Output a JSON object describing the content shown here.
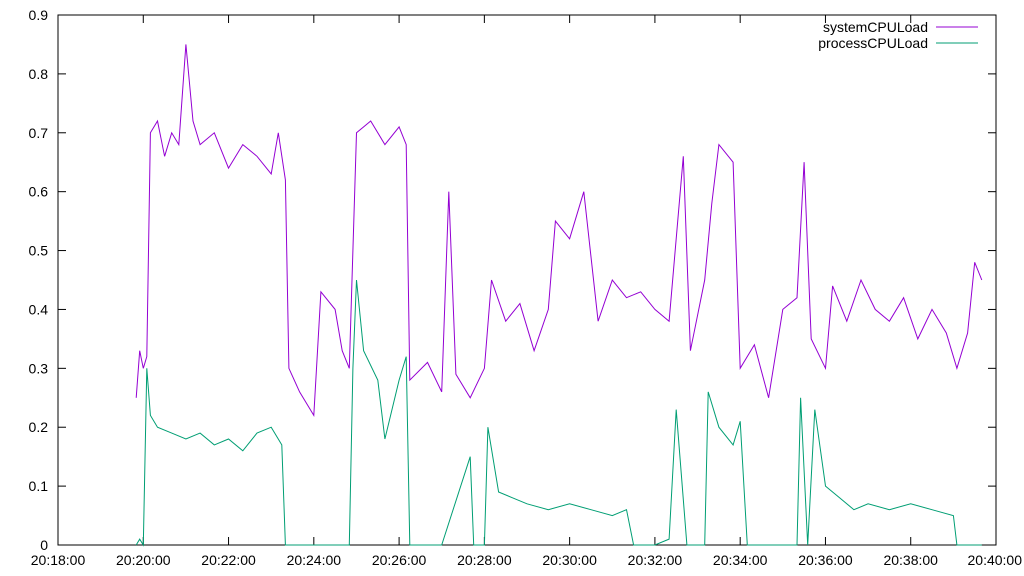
{
  "chart_data": {
    "type": "line",
    "title": "",
    "xlabel": "",
    "ylabel": "",
    "x_ticks": [
      "20:18:00",
      "20:20:00",
      "20:22:00",
      "20:24:00",
      "20:26:00",
      "20:28:00",
      "20:30:00",
      "20:32:00",
      "20:34:00",
      "20:36:00",
      "20:38:00",
      "20:40:00"
    ],
    "y_ticks": [
      "0",
      "0.1",
      "0.2",
      "0.3",
      "0.4",
      "0.5",
      "0.6",
      "0.7",
      "0.8",
      "0.9"
    ],
    "xlim": [
      "20:18:00",
      "20:40:00"
    ],
    "ylim": [
      0,
      0.9
    ],
    "grid": false,
    "legend": "top-right",
    "series": [
      {
        "name": "systemCPULoad",
        "color": "#9400d3",
        "points": [
          [
            "20:19:50",
            0.25
          ],
          [
            "20:19:55",
            0.33
          ],
          [
            "20:20:00",
            0.3
          ],
          [
            "20:20:05",
            0.32
          ],
          [
            "20:20:10",
            0.7
          ],
          [
            "20:20:20",
            0.72
          ],
          [
            "20:20:30",
            0.66
          ],
          [
            "20:20:40",
            0.7
          ],
          [
            "20:20:50",
            0.68
          ],
          [
            "20:21:00",
            0.85
          ],
          [
            "20:21:10",
            0.72
          ],
          [
            "20:21:20",
            0.68
          ],
          [
            "20:21:40",
            0.7
          ],
          [
            "20:22:00",
            0.64
          ],
          [
            "20:22:20",
            0.68
          ],
          [
            "20:22:40",
            0.66
          ],
          [
            "20:23:00",
            0.63
          ],
          [
            "20:23:10",
            0.7
          ],
          [
            "20:23:20",
            0.62
          ],
          [
            "20:23:25",
            0.3
          ],
          [
            "20:23:40",
            0.26
          ],
          [
            "20:24:00",
            0.22
          ],
          [
            "20:24:10",
            0.43
          ],
          [
            "20:24:30",
            0.4
          ],
          [
            "20:24:40",
            0.33
          ],
          [
            "20:24:50",
            0.3
          ],
          [
            "20:25:00",
            0.7
          ],
          [
            "20:25:20",
            0.72
          ],
          [
            "20:25:40",
            0.68
          ],
          [
            "20:26:00",
            0.71
          ],
          [
            "20:26:10",
            0.68
          ],
          [
            "20:26:15",
            0.28
          ],
          [
            "20:26:40",
            0.31
          ],
          [
            "20:27:00",
            0.26
          ],
          [
            "20:27:10",
            0.6
          ],
          [
            "20:27:20",
            0.29
          ],
          [
            "20:27:40",
            0.25
          ],
          [
            "20:28:00",
            0.3
          ],
          [
            "20:28:10",
            0.45
          ],
          [
            "20:28:30",
            0.38
          ],
          [
            "20:28:50",
            0.41
          ],
          [
            "20:29:10",
            0.33
          ],
          [
            "20:29:30",
            0.4
          ],
          [
            "20:29:40",
            0.55
          ],
          [
            "20:30:00",
            0.52
          ],
          [
            "20:30:20",
            0.6
          ],
          [
            "20:30:40",
            0.38
          ],
          [
            "20:31:00",
            0.45
          ],
          [
            "20:31:20",
            0.42
          ],
          [
            "20:31:40",
            0.43
          ],
          [
            "20:32:00",
            0.4
          ],
          [
            "20:32:20",
            0.38
          ],
          [
            "20:32:40",
            0.66
          ],
          [
            "20:32:50",
            0.33
          ],
          [
            "20:33:10",
            0.45
          ],
          [
            "20:33:20",
            0.58
          ],
          [
            "20:33:30",
            0.68
          ],
          [
            "20:33:50",
            0.65
          ],
          [
            "20:34:00",
            0.3
          ],
          [
            "20:34:20",
            0.34
          ],
          [
            "20:34:40",
            0.25
          ],
          [
            "20:35:00",
            0.4
          ],
          [
            "20:35:20",
            0.42
          ],
          [
            "20:35:30",
            0.65
          ],
          [
            "20:35:40",
            0.35
          ],
          [
            "20:36:00",
            0.3
          ],
          [
            "20:36:10",
            0.44
          ],
          [
            "20:36:30",
            0.38
          ],
          [
            "20:36:50",
            0.45
          ],
          [
            "20:37:10",
            0.4
          ],
          [
            "20:37:30",
            0.38
          ],
          [
            "20:37:50",
            0.42
          ],
          [
            "20:38:10",
            0.35
          ],
          [
            "20:38:30",
            0.4
          ],
          [
            "20:38:50",
            0.36
          ],
          [
            "20:39:05",
            0.3
          ],
          [
            "20:39:20",
            0.36
          ],
          [
            "20:39:30",
            0.48
          ],
          [
            "20:39:40",
            0.45
          ]
        ]
      },
      {
        "name": "processCPULoad",
        "color": "#009e73",
        "points": [
          [
            "20:19:50",
            0.0
          ],
          [
            "20:19:55",
            0.01
          ],
          [
            "20:20:00",
            0.0
          ],
          [
            "20:20:05",
            0.3
          ],
          [
            "20:20:10",
            0.22
          ],
          [
            "20:20:20",
            0.2
          ],
          [
            "20:20:40",
            0.19
          ],
          [
            "20:21:00",
            0.18
          ],
          [
            "20:21:20",
            0.19
          ],
          [
            "20:21:40",
            0.17
          ],
          [
            "20:22:00",
            0.18
          ],
          [
            "20:22:20",
            0.16
          ],
          [
            "20:22:40",
            0.19
          ],
          [
            "20:23:00",
            0.2
          ],
          [
            "20:23:15",
            0.17
          ],
          [
            "20:23:20",
            0.0
          ],
          [
            "20:24:00",
            0.0
          ],
          [
            "20:24:50",
            0.0
          ],
          [
            "20:24:55",
            0.3
          ],
          [
            "20:25:00",
            0.45
          ],
          [
            "20:25:10",
            0.33
          ],
          [
            "20:25:30",
            0.28
          ],
          [
            "20:25:40",
            0.18
          ],
          [
            "20:26:00",
            0.28
          ],
          [
            "20:26:10",
            0.32
          ],
          [
            "20:26:15",
            0.0
          ],
          [
            "20:27:00",
            0.0
          ],
          [
            "20:27:40",
            0.15
          ],
          [
            "20:27:45",
            0.0
          ],
          [
            "20:28:00",
            0.0
          ],
          [
            "20:28:05",
            0.2
          ],
          [
            "20:28:20",
            0.09
          ],
          [
            "20:28:40",
            0.08
          ],
          [
            "20:29:00",
            0.07
          ],
          [
            "20:29:30",
            0.06
          ],
          [
            "20:30:00",
            0.07
          ],
          [
            "20:30:30",
            0.06
          ],
          [
            "20:31:00",
            0.05
          ],
          [
            "20:31:20",
            0.06
          ],
          [
            "20:31:30",
            0.0
          ],
          [
            "20:32:00",
            0.0
          ],
          [
            "20:32:20",
            0.01
          ],
          [
            "20:32:30",
            0.23
          ],
          [
            "20:32:45",
            0.0
          ],
          [
            "20:33:10",
            0.0
          ],
          [
            "20:33:15",
            0.26
          ],
          [
            "20:33:30",
            0.2
          ],
          [
            "20:33:50",
            0.17
          ],
          [
            "20:34:00",
            0.21
          ],
          [
            "20:34:10",
            0.0
          ],
          [
            "20:35:00",
            0.0
          ],
          [
            "20:35:20",
            0.0
          ],
          [
            "20:35:25",
            0.25
          ],
          [
            "20:35:35",
            0.0
          ],
          [
            "20:35:45",
            0.23
          ],
          [
            "20:36:00",
            0.1
          ],
          [
            "20:36:20",
            0.08
          ],
          [
            "20:36:40",
            0.06
          ],
          [
            "20:37:00",
            0.07
          ],
          [
            "20:37:30",
            0.06
          ],
          [
            "20:38:00",
            0.07
          ],
          [
            "20:38:30",
            0.06
          ],
          [
            "20:39:00",
            0.05
          ],
          [
            "20:39:05",
            0.0
          ],
          [
            "20:39:40",
            0.0
          ]
        ]
      }
    ]
  }
}
